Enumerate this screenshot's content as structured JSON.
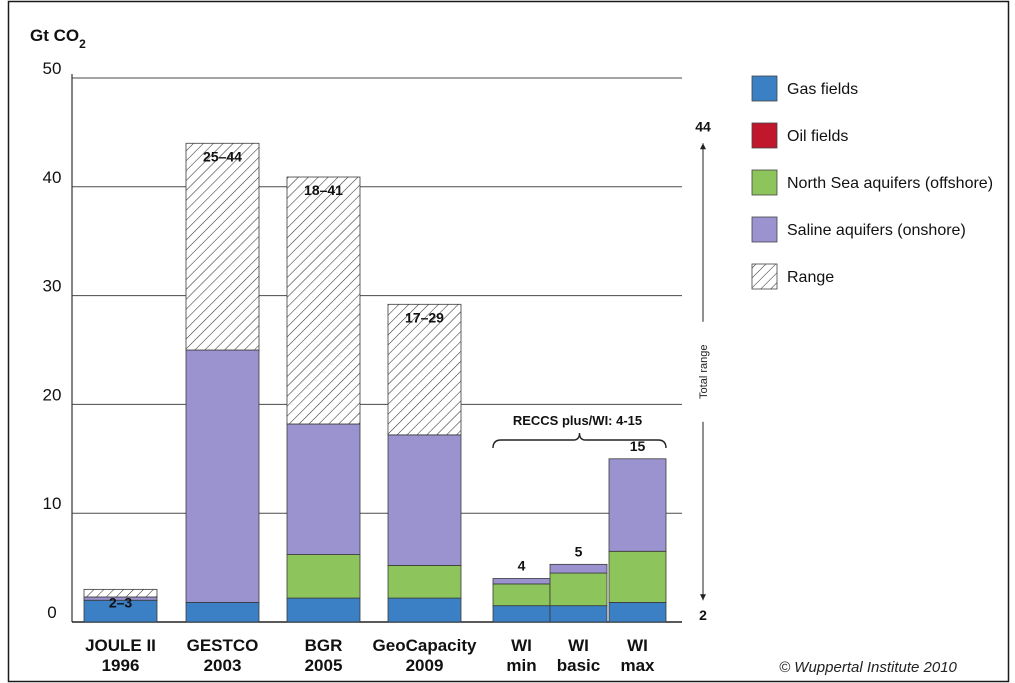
{
  "chart_data": {
    "type": "bar",
    "stacked": true,
    "ylabel": "Gt CO2",
    "ylim": [
      0,
      50
    ],
    "yticks": [
      0,
      10,
      20,
      30,
      40,
      50
    ],
    "grid": true,
    "legend_placement": "right",
    "categories": [
      {
        "line1": "JOULE II",
        "line2": "1996"
      },
      {
        "line1": "GESTCO",
        "line2": "2003"
      },
      {
        "line1": "BGR",
        "line2": "2005"
      },
      {
        "line1": "GeoCapacity",
        "line2": "2009"
      },
      {
        "line1": "WI",
        "line2": "min"
      },
      {
        "line1": "WI",
        "line2": "basic"
      },
      {
        "line1": "WI",
        "line2": "max"
      }
    ],
    "series": [
      {
        "name": "Gas fields",
        "color": "#3b7fc4",
        "values": [
          2,
          1.8,
          2.2,
          2.2,
          1.5,
          1.5,
          1.8
        ]
      },
      {
        "name": "Oil fields",
        "color": "#c0172d",
        "values": [
          0,
          0,
          0,
          0,
          0,
          0,
          0
        ]
      },
      {
        "name": "North Sea aquifers (offshore)",
        "color": "#8dc45c",
        "values": [
          0,
          0,
          4,
          3,
          2,
          3,
          4.7
        ]
      },
      {
        "name": "Saline aquifers (onshore)",
        "color": "#9b93d0",
        "values": [
          0.3,
          23.2,
          12,
          12,
          0.5,
          0.8,
          8.5
        ]
      },
      {
        "name": "Range",
        "pattern": "hatch",
        "values": [
          0.7,
          19,
          22.7,
          12,
          0,
          0,
          0
        ]
      }
    ],
    "bar_labels": [
      "2–3",
      "25–44",
      "18–41",
      "17–29",
      "4",
      "5",
      "15"
    ],
    "annotations": {
      "bracket": "RECCS plus/WI: 4-15",
      "total_range": "Total range",
      "total_range_top": "44",
      "total_range_bottom": "2"
    },
    "credit": "© Wuppertal Institute 2010"
  }
}
